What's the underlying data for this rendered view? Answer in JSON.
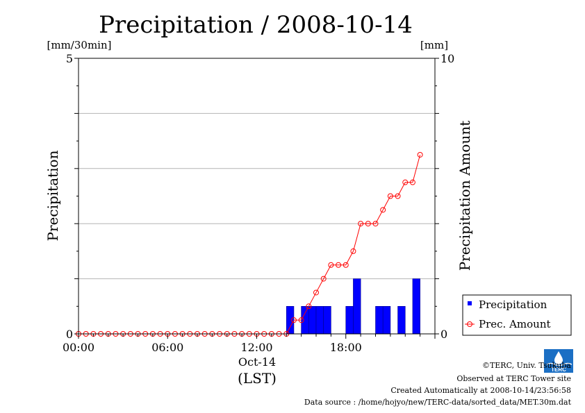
{
  "chart_data": {
    "type": "bar",
    "title": "Precipitation / 2008-10-14",
    "y_left_unit": "[mm/30min]",
    "y_right_unit": "[mm]",
    "ylabel": "Precipitation",
    "ylabel_right": "Precipitation Amount",
    "xlabel": "(LST)",
    "date_label": "Oct-14",
    "xlim_hours": [
      0,
      24
    ],
    "ylim": [
      0,
      5
    ],
    "ylim_right": [
      0,
      10
    ],
    "x_ticks": [
      "00:00",
      "06:00",
      "12:00",
      "18:00"
    ],
    "y_left_ticks": [
      "0",
      "5"
    ],
    "y_right_ticks": [
      "0",
      "10"
    ],
    "grid": true,
    "legend_position": "bottom-right",
    "series": [
      {
        "name": "Precipitation",
        "type": "bar",
        "color": "#0000ff",
        "x": [
          "00:00",
          "00:30",
          "01:00",
          "01:30",
          "02:00",
          "02:30",
          "03:00",
          "03:30",
          "04:00",
          "04:30",
          "05:00",
          "05:30",
          "06:00",
          "06:30",
          "07:00",
          "07:30",
          "08:00",
          "08:30",
          "09:00",
          "09:30",
          "10:00",
          "10:30",
          "11:00",
          "11:30",
          "12:00",
          "12:30",
          "13:00",
          "13:30",
          "14:00",
          "14:30",
          "15:00",
          "15:30",
          "16:00",
          "16:30",
          "17:00",
          "17:30",
          "18:00",
          "18:30",
          "19:00",
          "19:30",
          "20:00",
          "20:30",
          "21:00",
          "21:30",
          "22:00",
          "22:30",
          "23:00"
        ],
        "values": [
          0,
          0,
          0,
          0,
          0,
          0,
          0,
          0,
          0,
          0,
          0,
          0,
          0,
          0,
          0,
          0,
          0,
          0,
          0,
          0,
          0,
          0,
          0,
          0,
          0,
          0,
          0,
          0,
          0.5,
          0,
          0.5,
          0.5,
          0.5,
          0.5,
          0,
          0,
          0.5,
          1.0,
          0,
          0,
          0.5,
          0.5,
          0,
          0.5,
          0,
          1.0,
          0
        ]
      },
      {
        "name": "Prec. Amount",
        "type": "line",
        "color": "#ff0000",
        "x": [
          "00:00",
          "00:30",
          "01:00",
          "01:30",
          "02:00",
          "02:30",
          "03:00",
          "03:30",
          "04:00",
          "04:30",
          "05:00",
          "05:30",
          "06:00",
          "06:30",
          "07:00",
          "07:30",
          "08:00",
          "08:30",
          "09:00",
          "09:30",
          "10:00",
          "10:30",
          "11:00",
          "11:30",
          "12:00",
          "12:30",
          "13:00",
          "13:30",
          "14:00",
          "14:30",
          "15:00",
          "15:30",
          "16:00",
          "16:30",
          "17:00",
          "17:30",
          "18:00",
          "18:30",
          "19:00",
          "19:30",
          "20:00",
          "20:30",
          "21:00",
          "21:30",
          "22:00",
          "22:30",
          "23:00"
        ],
        "values": [
          0,
          0,
          0,
          0,
          0,
          0,
          0,
          0,
          0,
          0,
          0,
          0,
          0,
          0,
          0,
          0,
          0,
          0,
          0,
          0,
          0,
          0,
          0,
          0,
          0,
          0,
          0,
          0,
          0,
          0.5,
          0.5,
          1.0,
          1.5,
          2.0,
          2.5,
          2.5,
          2.5,
          3.0,
          4.0,
          4.0,
          4.0,
          4.5,
          5.0,
          5.0,
          5.5,
          5.5,
          6.5
        ]
      }
    ]
  },
  "footer": {
    "copyright": "©TERC, Univ. Tsukuba",
    "observed": "Observed at TERC Tower site",
    "created": "Created Automatically at 2008-10-14/23:56:58",
    "source": "Data source : /home/hojyo/new/TERC-data/sorted_data/MET.30m.dat",
    "logo_text": "TERC"
  }
}
